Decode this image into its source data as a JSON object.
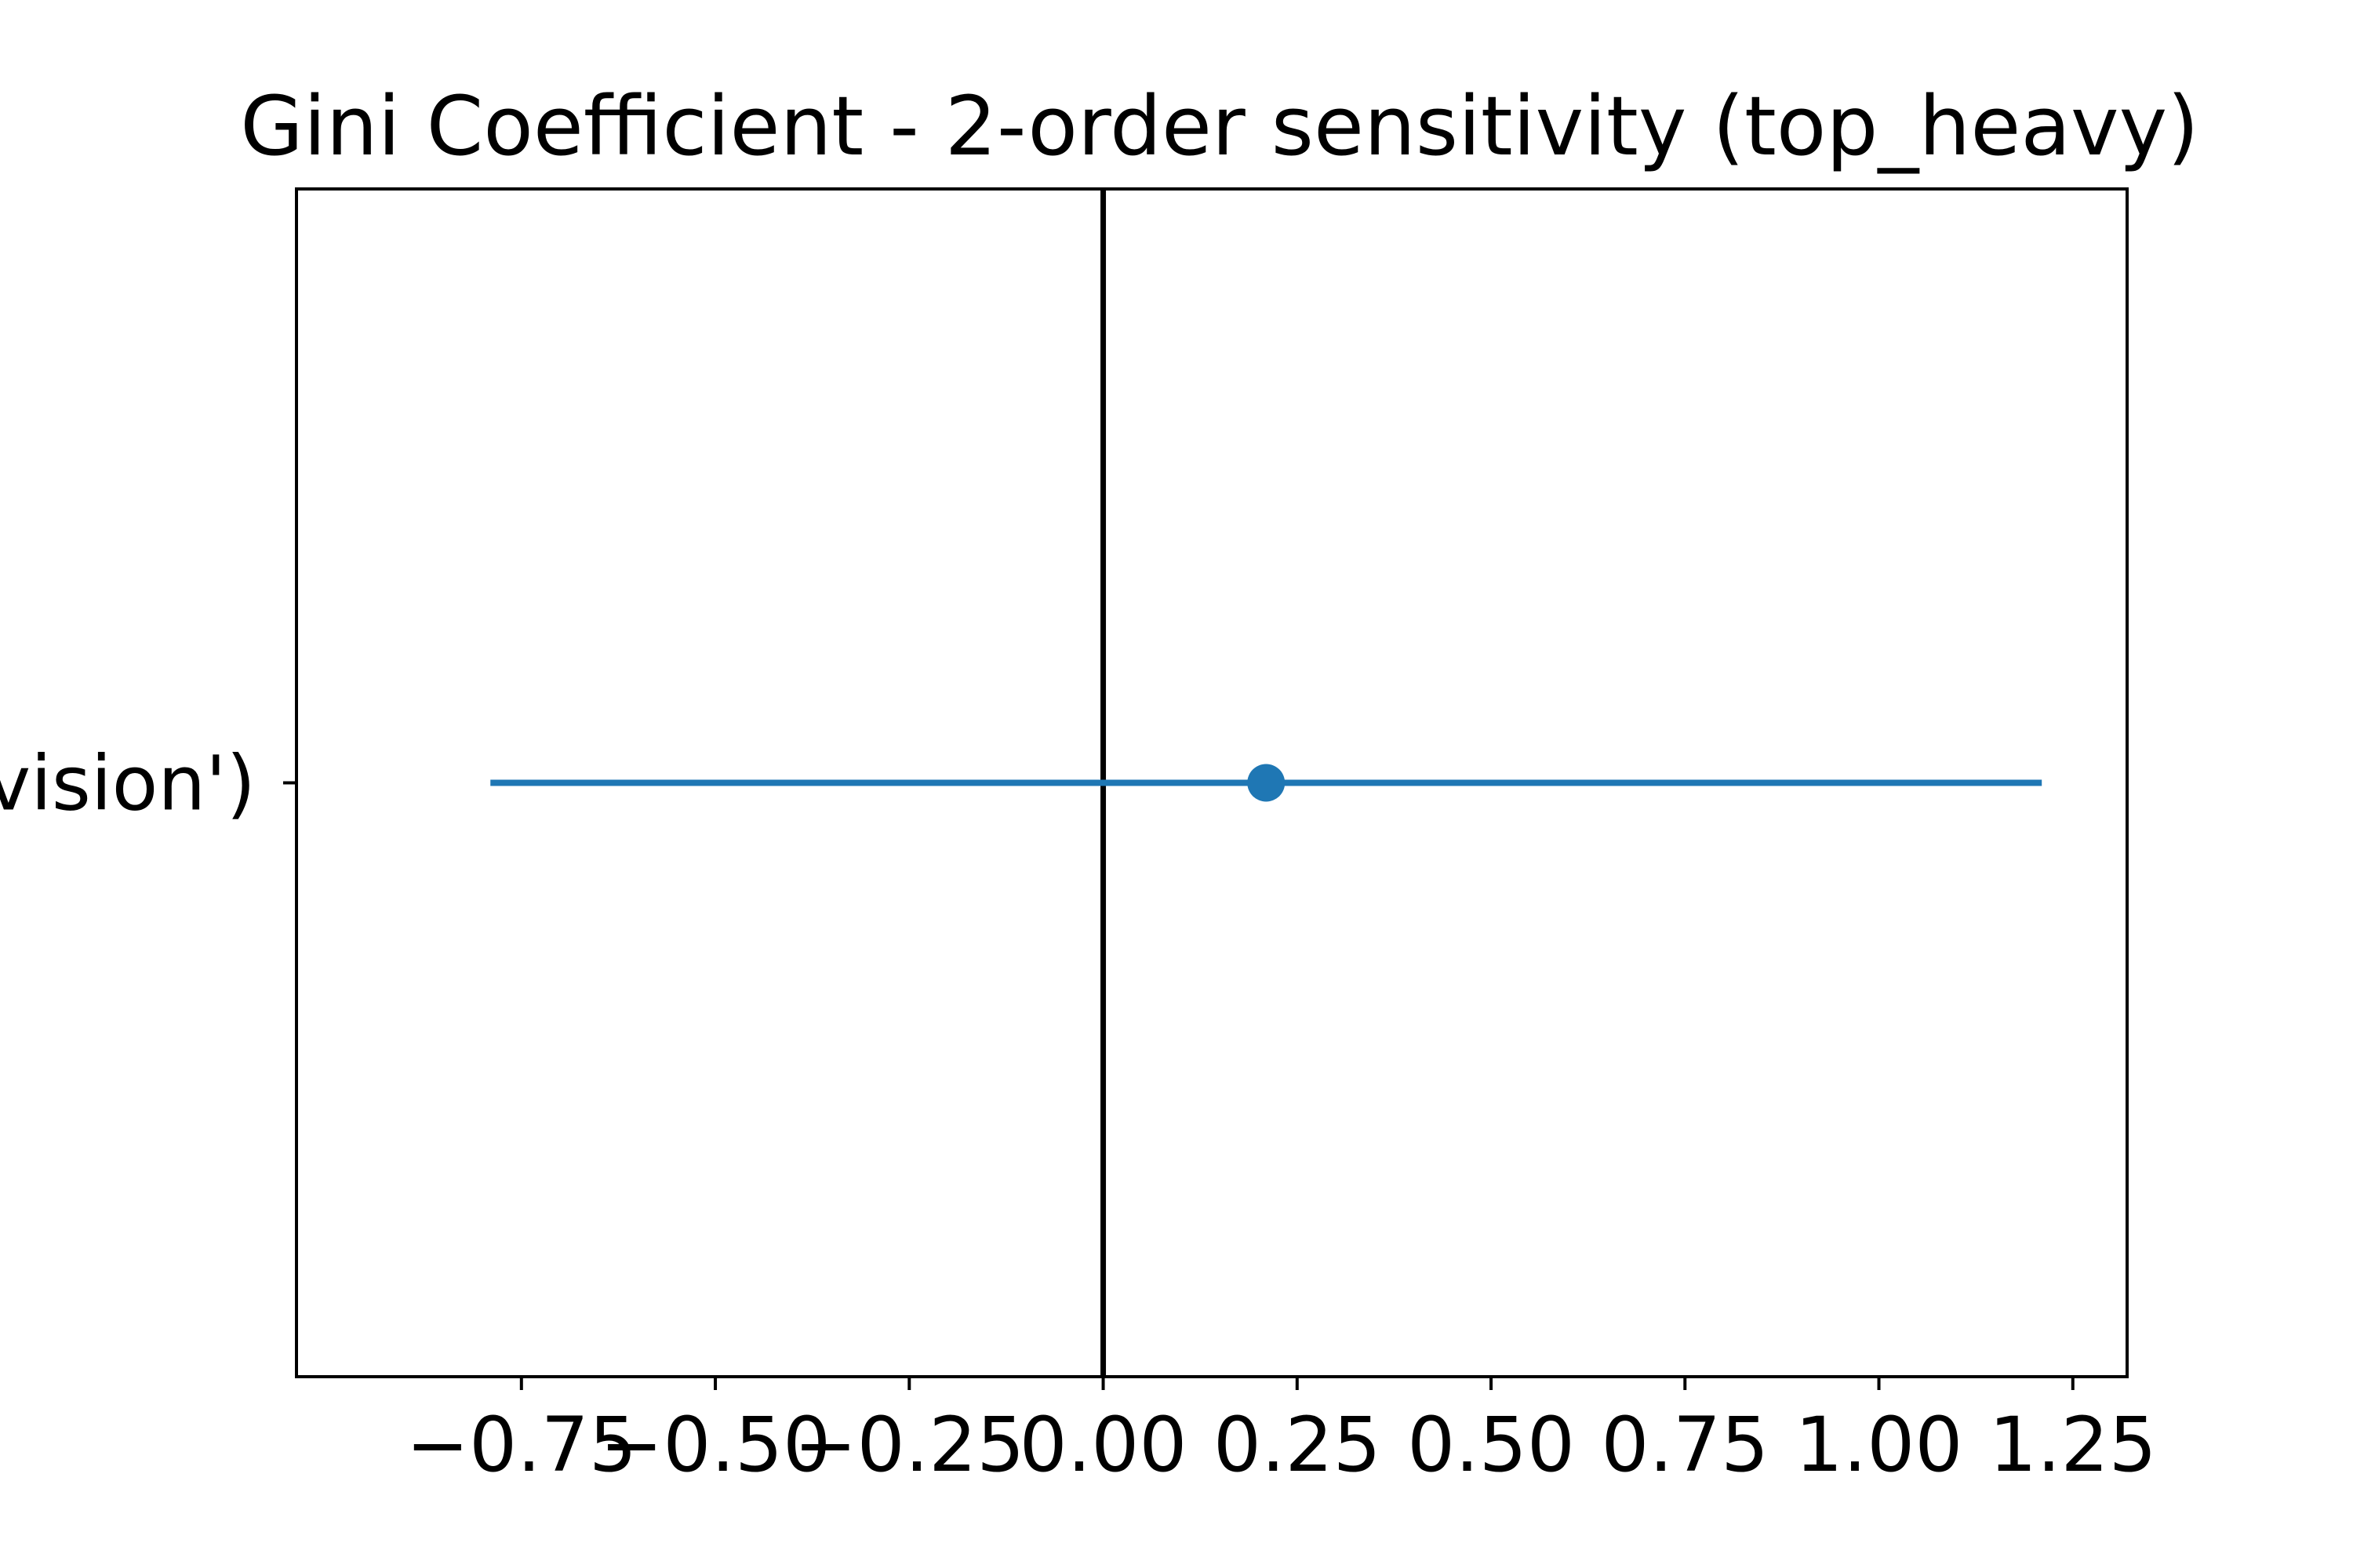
{
  "chart_data": {
    "type": "scatter",
    "title": "Gini Coefficient - 2-order sensitivity (top_heavy)",
    "xlabel": "",
    "ylabel": "",
    "xlim": [
      -1.04,
      1.32
    ],
    "ylim": [
      -1,
      1
    ],
    "grid": false,
    "x_ticks": [
      -0.75,
      -0.5,
      -0.25,
      0.0,
      0.25,
      0.5,
      0.75,
      1.0,
      1.25
    ],
    "x_tick_labels": [
      "−0.75",
      "−0.50",
      "−0.25",
      "0.00",
      "0.25",
      "0.50",
      "0.75",
      "1.00",
      "1.25"
    ],
    "y_tick_labels": [
      "vision')"
    ],
    "points": [
      {
        "category": "vision')",
        "value": 0.21,
        "ci_low": -0.79,
        "ci_high": 1.21
      }
    ],
    "reference_line_x": 0.0,
    "colors": {
      "series": "#1f77b4",
      "reference_line": "#000000",
      "axes": "#000000"
    }
  }
}
